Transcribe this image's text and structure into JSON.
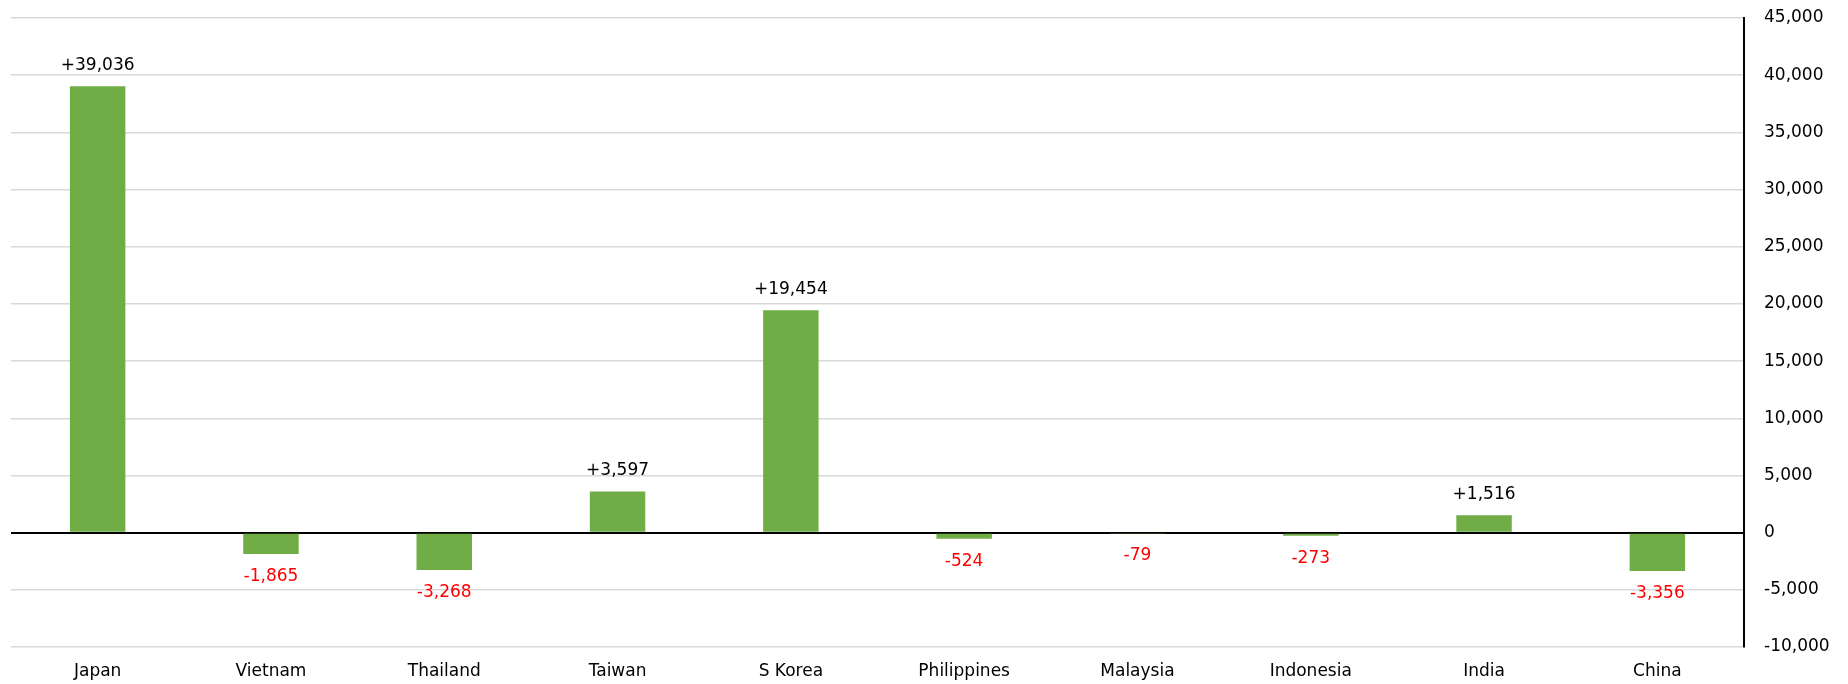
{
  "chart_data": {
    "type": "bar",
    "categories": [
      "Japan",
      "Vietnam",
      "Thailand",
      "Taiwan",
      "S Korea",
      "Philippines",
      "Malaysia",
      "Indonesia",
      "India",
      "China"
    ],
    "values": [
      39036,
      -1865,
      -3268,
      3597,
      19454,
      -524,
      -79,
      -273,
      1516,
      -3356
    ],
    "value_labels": [
      "+39,036",
      "-1,865",
      "-3,268",
      "+3,597",
      "+19,454",
      "-524",
      "-79",
      "-273",
      "+1,516",
      "-3,356"
    ],
    "color": "#70ad47",
    "ylim": [
      -10000,
      45000
    ],
    "yticks": [
      {
        "value": -10000,
        "label": "-10,000"
      },
      {
        "value": -5000,
        "label": "-5,000"
      },
      0,
      {
        "value": 5000,
        "label": "5,000"
      },
      {
        "value": 10000,
        "label": "10,000"
      },
      {
        "value": 15000,
        "label": "15,000"
      },
      {
        "value": 20000,
        "label": "20,000"
      },
      {
        "value": 25000,
        "label": "25,000"
      },
      {
        "value": 30000,
        "label": "30,000"
      },
      {
        "value": 35000,
        "label": "35,000"
      },
      {
        "value": 40000,
        "label": "40,000"
      },
      {
        "value": 45000,
        "label": "45,000"
      }
    ],
    "grid": "y"
  }
}
